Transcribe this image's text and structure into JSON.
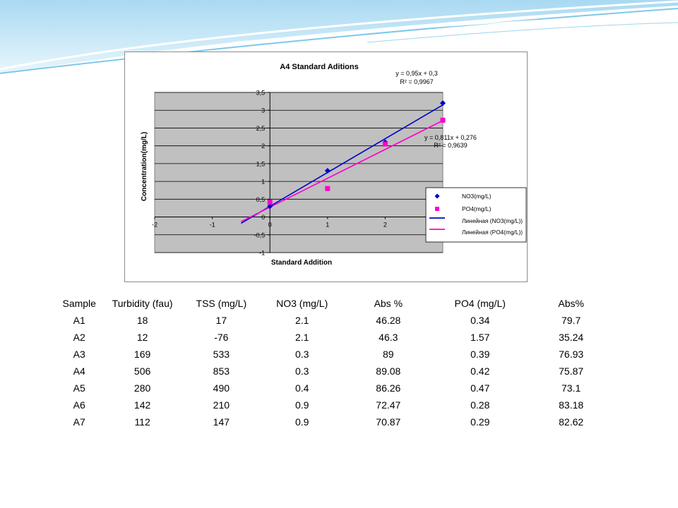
{
  "chart_data": {
    "type": "scatter",
    "title": "A4 Standard Aditions",
    "xlabel": "Standard Addition",
    "ylabel": "Concentration(mg/L)",
    "xlim": [
      -2,
      3
    ],
    "ylim": [
      -1,
      3.5
    ],
    "x_ticks": [
      -2,
      -1,
      0,
      1,
      2
    ],
    "x_tick_labels": [
      "-2",
      "-1",
      "0",
      "1",
      "2"
    ],
    "y_ticks": [
      -1,
      -0.5,
      0,
      0.5,
      1,
      1.5,
      2,
      2.5,
      3,
      3.5
    ],
    "y_tick_labels": [
      "-1",
      "-0,5",
      "0",
      "0,5",
      "1",
      "1,5",
      "2",
      "2,5",
      "3",
      "3,5"
    ],
    "grid": true,
    "legend_position": "right",
    "series": [
      {
        "name": "NO3(mg/L)",
        "color": "#0000cc",
        "marker": "diamond",
        "points": [
          [
            0,
            0.3
          ],
          [
            1,
            1.3
          ],
          [
            2,
            2.1
          ],
          [
            3,
            3.2
          ]
        ],
        "trendline": {
          "name": "Линейная (NO3(mg/L))",
          "slope": 0.95,
          "intercept": 0.3,
          "x_range": [
            -0.5,
            3
          ],
          "equation": "y = 0,95x + 0,3",
          "r2": "R² = 0,9967",
          "color": "#0000cc"
        }
      },
      {
        "name": "PO4(mg/L)",
        "color": "#ff00cc",
        "marker": "square",
        "points": [
          [
            0,
            0.42
          ],
          [
            1,
            0.8
          ],
          [
            2,
            2.05
          ],
          [
            3,
            2.72
          ]
        ],
        "trendline": {
          "name": "Линейная (PO4(mg/L))",
          "slope": 0.811,
          "intercept": 0.276,
          "x_range": [
            -0.5,
            3
          ],
          "equation": "y = 0,811x + 0,276",
          "r2": "R² = 0,9639",
          "color": "#ff00cc"
        }
      }
    ]
  },
  "table": {
    "headers": [
      "Sample",
      "Turbidity (fau)",
      "TSS (mg/L)",
      "NO3 (mg/L)",
      "Abs %",
      "PO4 (mg/L)",
      "Abs%"
    ],
    "rows": [
      [
        "A1",
        "18",
        "17",
        "2.1",
        "46.28",
        "0.34",
        "79.7"
      ],
      [
        "A2",
        "12",
        "-76",
        "2.1",
        "46.3",
        "1.57",
        "35.24"
      ],
      [
        "A3",
        "169",
        "533",
        "0.3",
        "89",
        "0.39",
        "76.93"
      ],
      [
        "A4",
        "506",
        "853",
        "0.3",
        "89.08",
        "0.42",
        "75.87"
      ],
      [
        "A5",
        "280",
        "490",
        "0.4",
        "86.26",
        "0.47",
        "73.1"
      ],
      [
        "A6",
        "142",
        "210",
        "0.9",
        "72.47",
        "0.28",
        "83.18"
      ],
      [
        "A7",
        "112",
        "147",
        "0.9",
        "70.87",
        "0.29",
        "82.62"
      ]
    ]
  },
  "colors": {
    "plot_background": "#c0c0c0",
    "header_sky": "#bfe3f5",
    "header_wave": "#7ec8ea"
  }
}
